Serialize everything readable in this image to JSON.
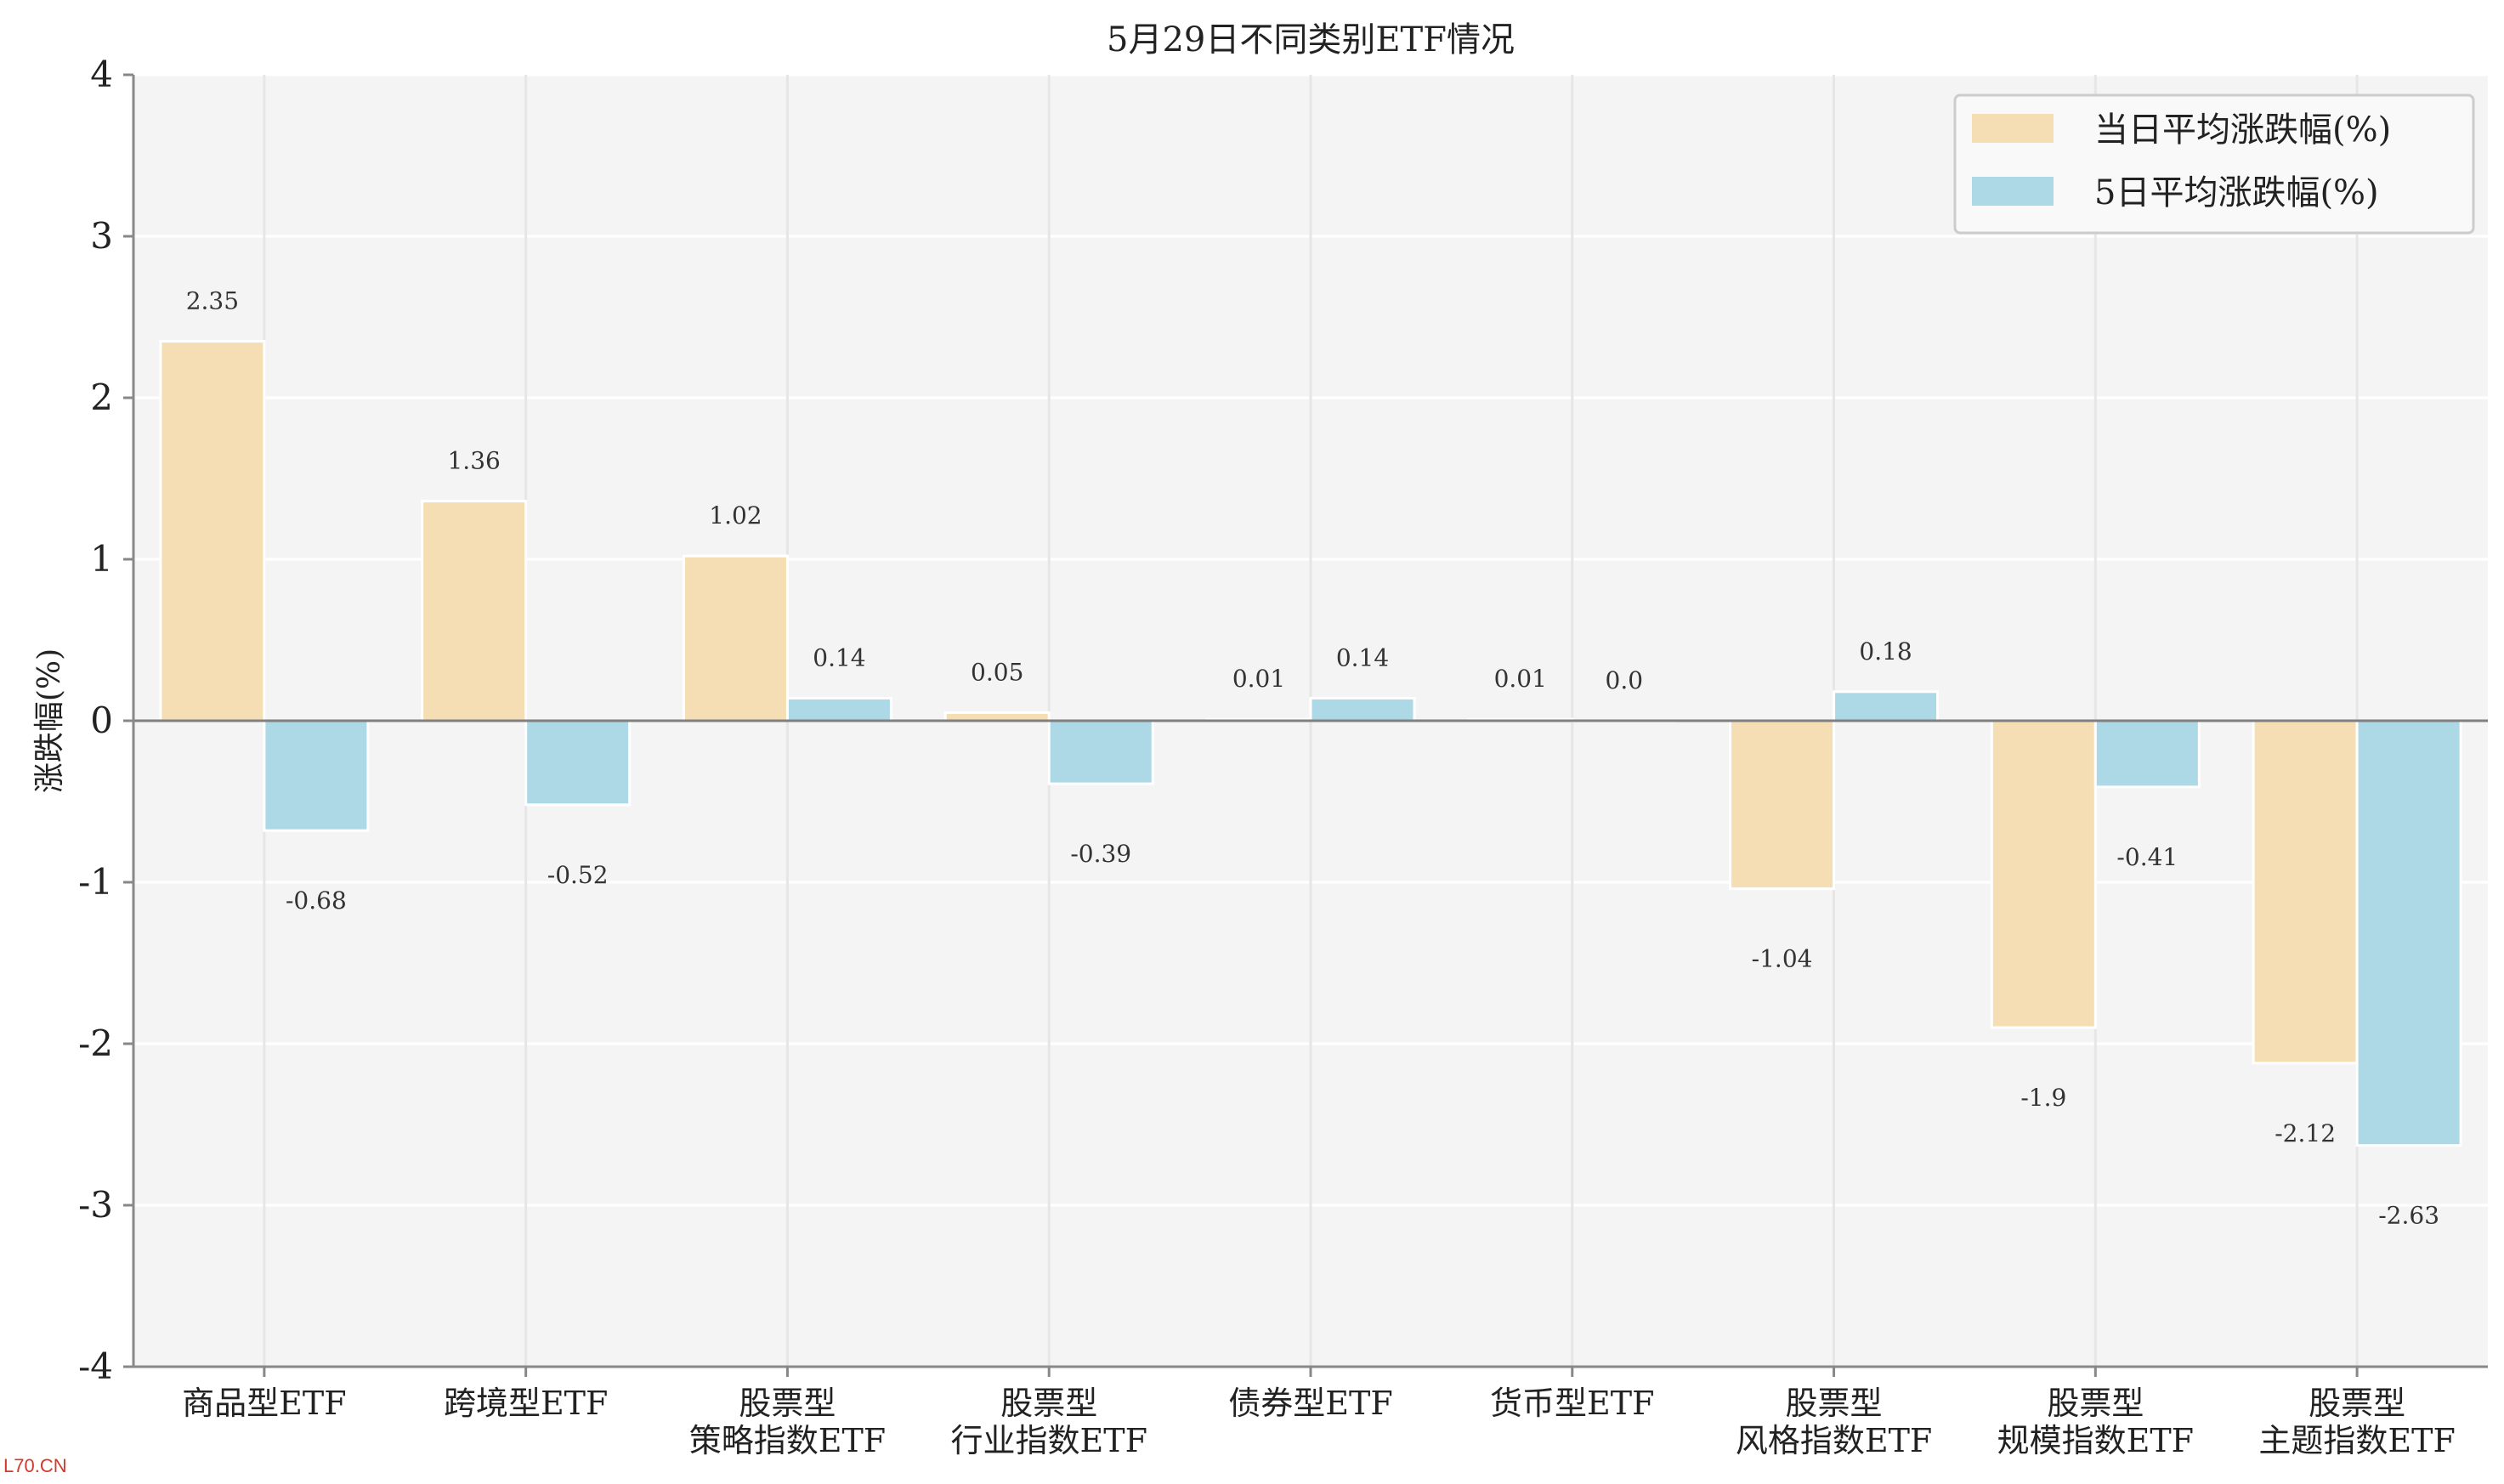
{
  "chart_data": {
    "type": "bar",
    "title": "5月29日不同类别ETF情况",
    "ylabel": "涨跌幅(%)",
    "ylim": [
      -4,
      4
    ],
    "yticks": [
      "4",
      "3",
      "2",
      "1",
      "0",
      "-1",
      "-2",
      "-3",
      "-4"
    ],
    "yticks_values": [
      4,
      3,
      2,
      1,
      0,
      -1,
      -2,
      -3,
      -4
    ],
    "grid": true,
    "legend_position": "top-right",
    "categories": [
      [
        "商品型ETF"
      ],
      [
        "跨境型ETF"
      ],
      [
        "股票型",
        "策略指数ETF"
      ],
      [
        "股票型",
        "行业指数ETF"
      ],
      [
        "债券型ETF"
      ],
      [
        "货币型ETF"
      ],
      [
        "股票型",
        "风格指数ETF"
      ],
      [
        "股票型",
        "规模指数ETF"
      ],
      [
        "股票型",
        "主题指数ETF"
      ]
    ],
    "series": [
      {
        "name": "当日平均涨跌幅(%)",
        "color": "#f5deb3",
        "values": [
          2.35,
          1.36,
          1.02,
          0.05,
          0.01,
          0.01,
          -1.04,
          -1.9,
          -2.12
        ],
        "labels": [
          "2.35",
          "1.36",
          "1.02",
          "0.05",
          "0.01",
          "0.01",
          "-1.04",
          "-1.9",
          "-2.12"
        ]
      },
      {
        "name": "5日平均涨跌幅(%)",
        "color": "#add8e6",
        "values": [
          -0.68,
          -0.52,
          0.14,
          -0.39,
          0.14,
          0.0,
          0.18,
          -0.41,
          -2.63
        ],
        "labels": [
          "-0.68",
          "-0.52",
          "0.14",
          "-0.39",
          "0.14",
          "0.0",
          "0.18",
          "-0.41",
          "-2.63"
        ]
      }
    ]
  },
  "watermark": "L70.CN"
}
